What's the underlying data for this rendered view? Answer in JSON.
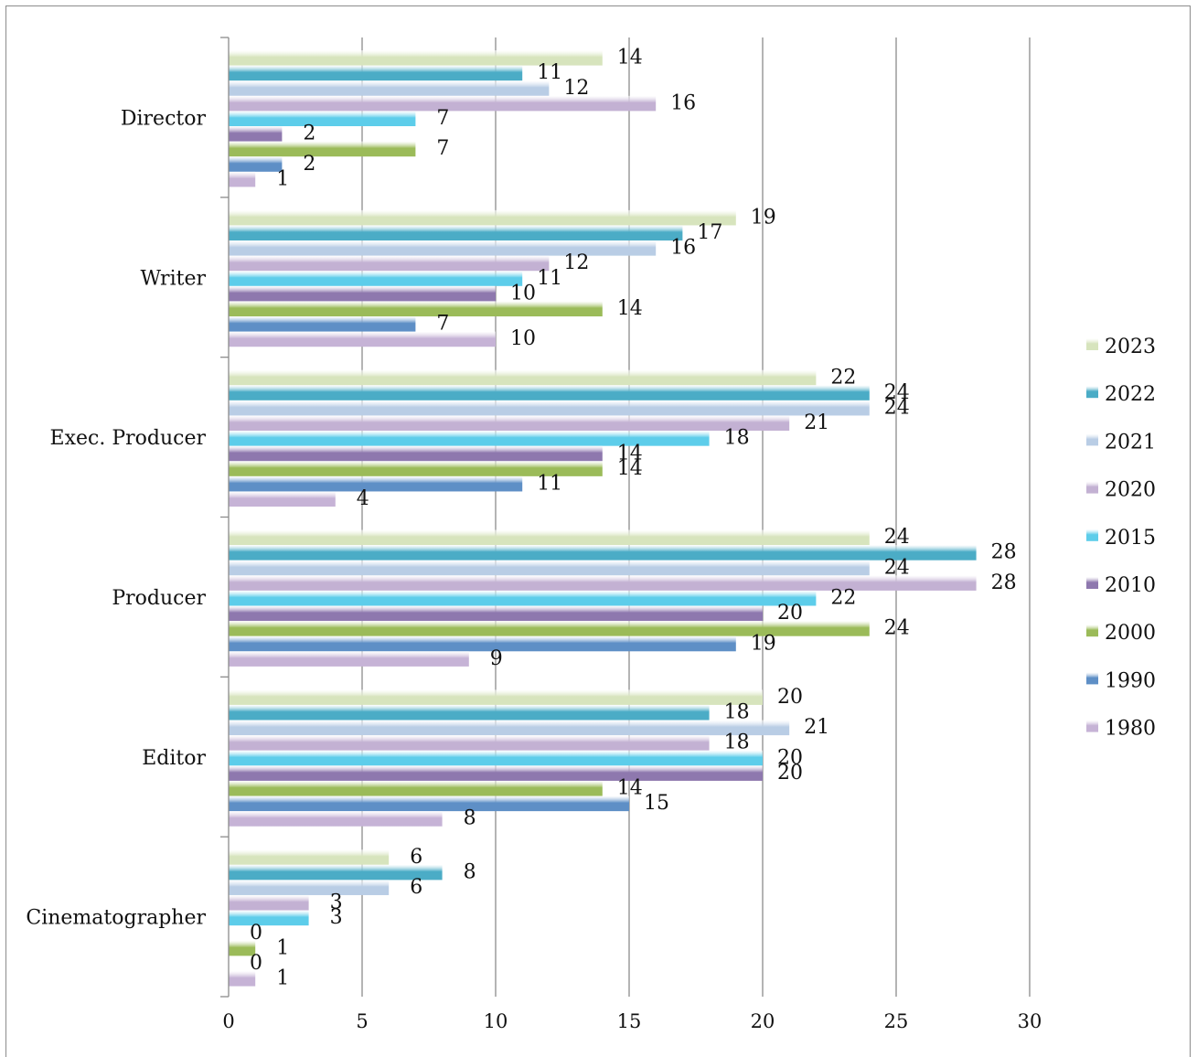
{
  "chart_data": {
    "type": "bar",
    "orientation": "horizontal",
    "title": "",
    "xlabel": "",
    "ylabel": "",
    "xlim": [
      0,
      30
    ],
    "xticks": [
      0,
      5,
      10,
      15,
      20,
      25,
      30
    ],
    "grid": true,
    "legend_position": "right",
    "categories": [
      "Director",
      "Writer",
      "Exec. Producer",
      "Producer",
      "Editor",
      "Cinematographer"
    ],
    "series": [
      {
        "name": "2023",
        "color": "#D7E4BD",
        "values": [
          14,
          19,
          22,
          24,
          20,
          6
        ]
      },
      {
        "name": "2022",
        "color": "#4BACC6",
        "values": [
          11,
          17,
          24,
          28,
          18,
          8
        ]
      },
      {
        "name": "2021",
        "color": "#B9CDE5",
        "values": [
          12,
          16,
          24,
          24,
          21,
          6
        ]
      },
      {
        "name": "2020",
        "color": "#C3B1D3",
        "values": [
          16,
          12,
          21,
          28,
          18,
          3
        ]
      },
      {
        "name": "2015",
        "color": "#5DCDEA",
        "values": [
          7,
          11,
          18,
          22,
          20,
          3
        ]
      },
      {
        "name": "2010",
        "color": "#8E78AE",
        "values": [
          2,
          10,
          14,
          20,
          20,
          0
        ]
      },
      {
        "name": "2000",
        "color": "#9BBB59",
        "values": [
          7,
          14,
          14,
          24,
          14,
          1
        ]
      },
      {
        "name": "1990",
        "color": "#5E8FC6",
        "values": [
          2,
          7,
          11,
          19,
          15,
          0
        ]
      },
      {
        "name": "1980",
        "color": "#C6B3D6",
        "values": [
          1,
          10,
          4,
          9,
          8,
          1
        ]
      }
    ]
  }
}
